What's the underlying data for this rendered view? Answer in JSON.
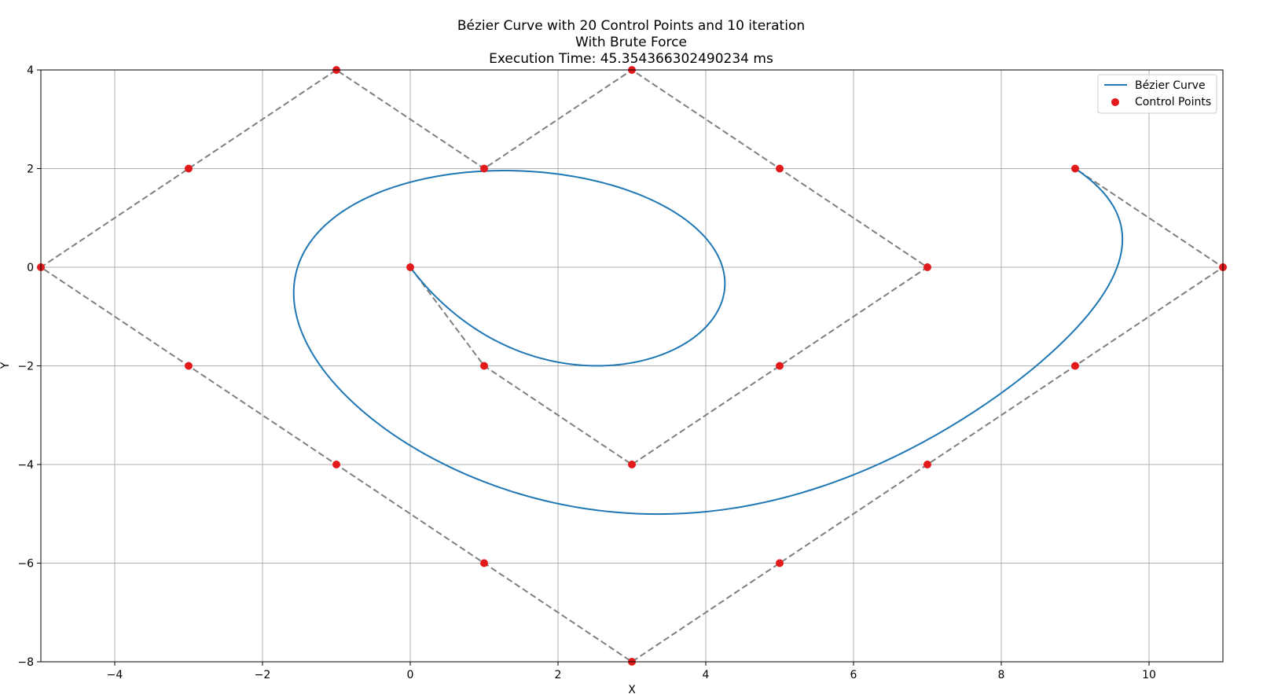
{
  "chart_data": {
    "type": "line",
    "title_lines": [
      "Bézier Curve with 20 Control Points and 10 iteration",
      "With Brute Force",
      "Execution Time: 45.354366302490234 ms"
    ],
    "xlabel": "X",
    "ylabel": "Y",
    "xlim": [
      -5,
      11
    ],
    "ylim": [
      -8,
      4
    ],
    "xticks": [
      -4,
      -2,
      0,
      2,
      4,
      6,
      8,
      10
    ],
    "yticks": [
      -8,
      -6,
      -4,
      -2,
      0,
      2,
      4
    ],
    "grid": true,
    "legend_placement": "top-right",
    "legend": [
      {
        "label": "Bézier Curve",
        "kind": "line"
      },
      {
        "label": "Control Points",
        "kind": "marker"
      }
    ],
    "colors": {
      "curve": "#1f77b4",
      "points": "#e31a1c",
      "polygon": "#7f7f7f",
      "grid": "#b0b0b0"
    },
    "control_points": [
      [
        0,
        0
      ],
      [
        1,
        -2
      ],
      [
        3,
        -4
      ],
      [
        5,
        -2
      ],
      [
        7,
        0
      ],
      [
        5,
        2
      ],
      [
        3,
        4
      ],
      [
        1,
        2
      ],
      [
        -1,
        4
      ],
      [
        -3,
        2
      ],
      [
        -5,
        0
      ],
      [
        -3,
        -2
      ],
      [
        -1,
        -4
      ],
      [
        1,
        -6
      ],
      [
        3,
        -8
      ],
      [
        5,
        -6
      ],
      [
        7,
        -4
      ],
      [
        9,
        -2
      ],
      [
        11,
        0
      ],
      [
        9,
        2
      ]
    ],
    "curve_samples": 400
  }
}
